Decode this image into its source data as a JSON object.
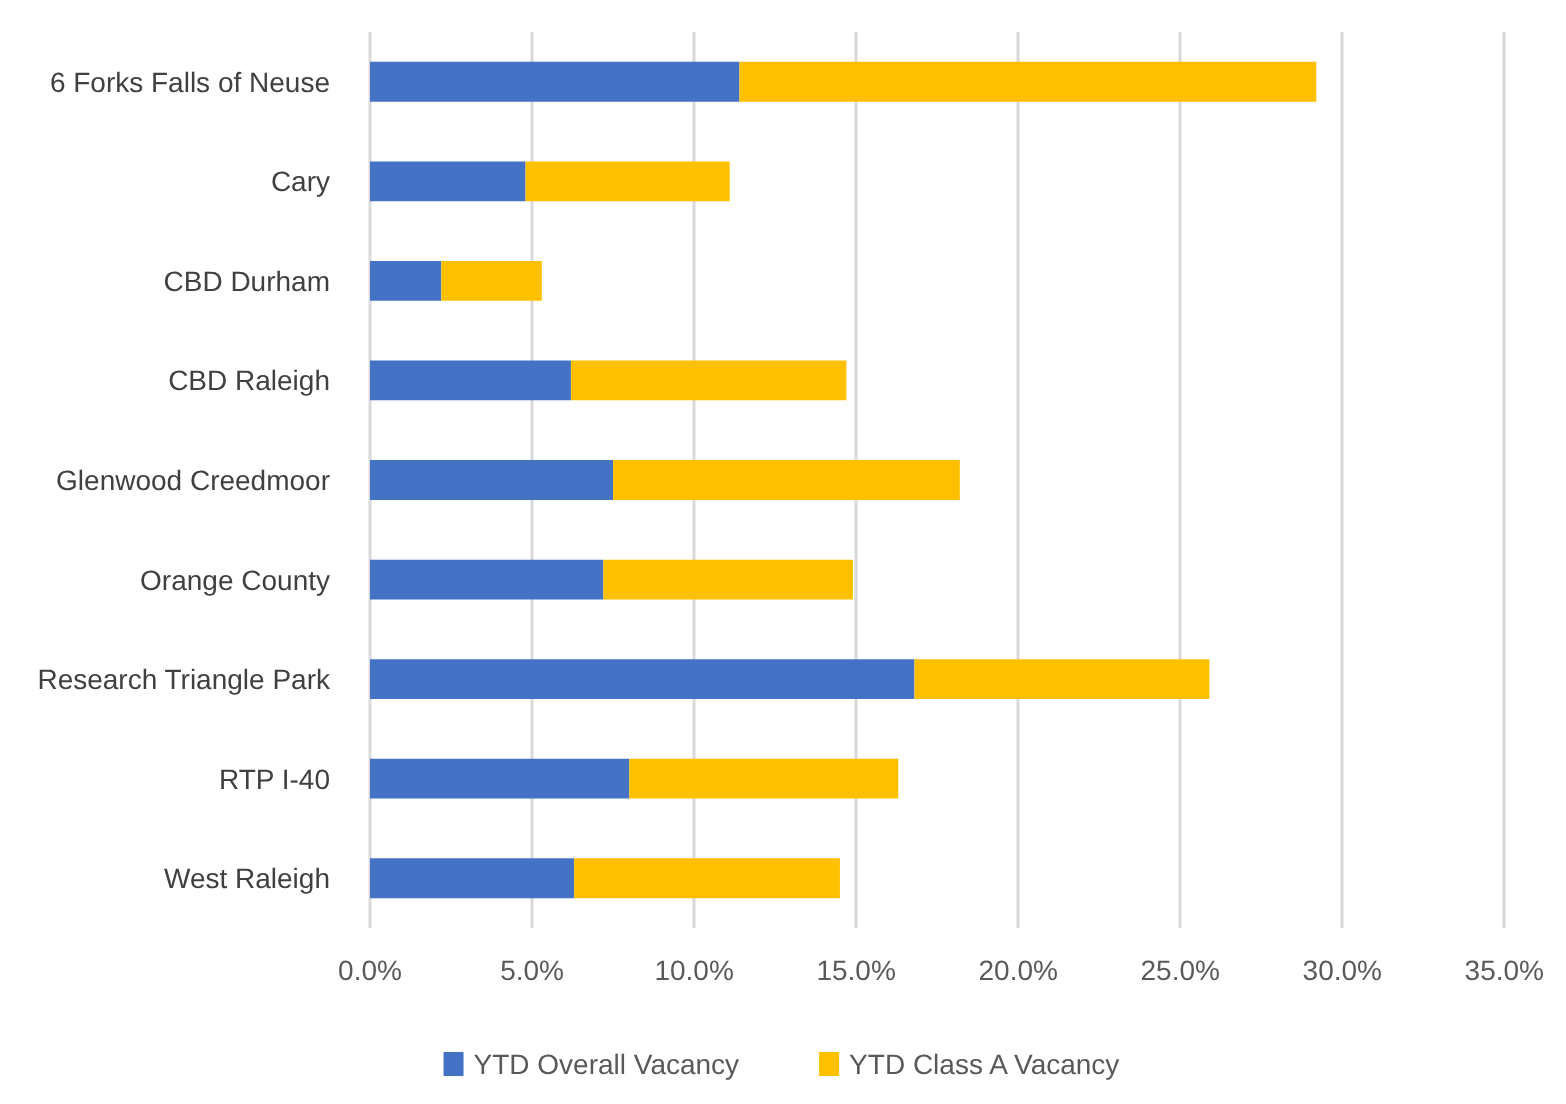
{
  "chart_data": {
    "type": "bar",
    "orientation": "horizontal",
    "stacked": true,
    "categories": [
      "6 Forks Falls of Neuse",
      "Cary",
      "CBD Durham",
      "CBD Raleigh",
      "Glenwood Creedmoor",
      "Orange County",
      "Research Triangle Park",
      "RTP I-40",
      "West Raleigh"
    ],
    "series": [
      {
        "name": "YTD Overall Vacancy",
        "color": "#4472c4",
        "values": [
          11.4,
          4.8,
          2.2,
          6.2,
          7.5,
          7.2,
          16.8,
          8.0,
          6.3
        ]
      },
      {
        "name": "YTD Class A Vacancy",
        "color": "#ffc000",
        "values": [
          17.8,
          6.3,
          3.1,
          8.5,
          10.7,
          7.7,
          9.1,
          8.3,
          8.2
        ]
      }
    ],
    "xlim": [
      0,
      35
    ],
    "xticks": [
      {
        "value": 0,
        "label": "0.0%"
      },
      {
        "value": 5,
        "label": "5.0%"
      },
      {
        "value": 10,
        "label": "10.0%"
      },
      {
        "value": 15,
        "label": "15.0%"
      },
      {
        "value": 20,
        "label": "20.0%"
      },
      {
        "value": 25,
        "label": "25.0%"
      },
      {
        "value": 30,
        "label": "30.0%"
      },
      {
        "value": 35,
        "label": "35.0%"
      }
    ],
    "grid": "x",
    "legend": "bottom"
  }
}
